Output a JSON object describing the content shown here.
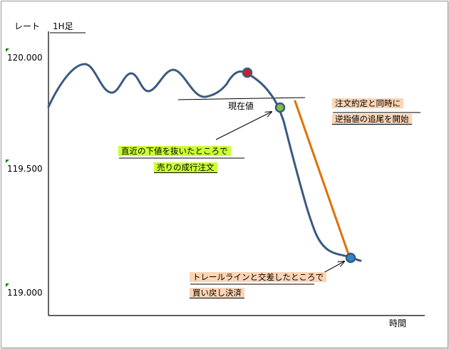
{
  "chart": {
    "y_axis_label": "レート",
    "timeframe": "1H足",
    "x_axis_label": "時間",
    "y_ticks": [
      "120.000",
      "119.500",
      "119.000"
    ]
  },
  "annotations": {
    "current_price": "現在値",
    "entry_line1": "直近の下値を抜いたところで",
    "entry_line2": "売りの成行注文",
    "trail_line1": "注文約定と同時に",
    "trail_line2": "逆指値の追尾を開始",
    "exit_line1": "トレールラインと交差したところで",
    "exit_line2": "買い戻し決済"
  },
  "colors": {
    "price_line": "#3a5a80",
    "trail_line": "#e07000",
    "sell_marker": "#d8192a",
    "entry_marker": "#7ec04a",
    "exit_marker": "#2e88c8",
    "green_label": "#ccff33",
    "peach_label": "#fbd5b5"
  }
}
